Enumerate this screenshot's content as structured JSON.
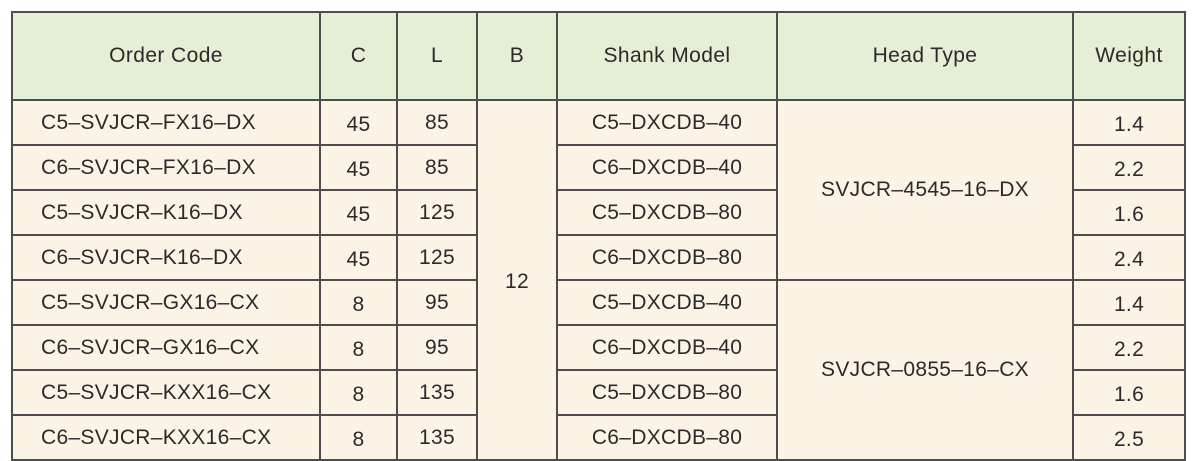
{
  "headers": {
    "order_code": "Order Code",
    "c": "C",
    "l": "L",
    "b": "B",
    "shank_model": "Shank Model",
    "head_type": "Head Type",
    "weight": "Weight"
  },
  "b_value": "12",
  "head_types": [
    "SVJCR–4545–16–DX",
    "SVJCR–0855–16–CX"
  ],
  "rows": [
    {
      "code": "C5–SVJCR–FX16–DX",
      "c": "45",
      "l": "85",
      "shank": "C5–DXCDB–40",
      "weight": "1.4"
    },
    {
      "code": "C6–SVJCR–FX16–DX",
      "c": "45",
      "l": "85",
      "shank": "C6–DXCDB–40",
      "weight": "2.2"
    },
    {
      "code": "C5–SVJCR–K16–DX",
      "c": "45",
      "l": "125",
      "shank": "C5–DXCDB–80",
      "weight": "1.6"
    },
    {
      "code": "C6–SVJCR–K16–DX",
      "c": "45",
      "l": "125",
      "shank": "C6–DXCDB–80",
      "weight": "2.4"
    },
    {
      "code": "C5–SVJCR–GX16–CX",
      "c": "8",
      "l": "95",
      "shank": "C5–DXCDB–40",
      "weight": "1.4"
    },
    {
      "code": "C6–SVJCR–GX16–CX",
      "c": "8",
      "l": "95",
      "shank": "C6–DXCDB–40",
      "weight": "2.2"
    },
    {
      "code": "C5–SVJCR–KXX16–CX",
      "c": "8",
      "l": "135",
      "shank": "C5–DXCDB–80",
      "weight": "1.6"
    },
    {
      "code": "C6–SVJCR–KXX16–CX",
      "c": "8",
      "l": "135",
      "shank": "C6–DXCDB–80",
      "weight": "2.5"
    }
  ]
}
